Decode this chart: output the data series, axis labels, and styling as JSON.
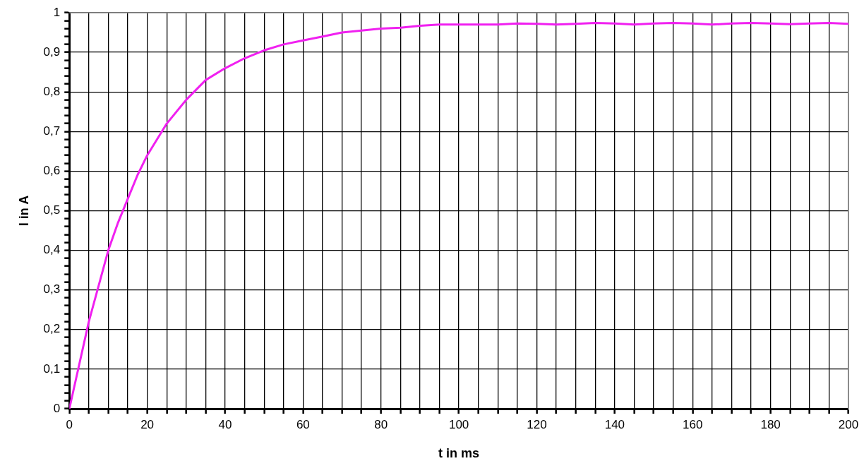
{
  "chart_data": {
    "type": "line",
    "xlabel": "t in ms",
    "ylabel": "I in A",
    "xlim": [
      0,
      200
    ],
    "xticks": [
      0,
      {
        "value": 5,
        "label": null
      },
      {
        "value": 10,
        "label": null
      },
      {
        "value": 15,
        "label": null
      },
      20,
      {
        "value": 25,
        "label": null
      },
      {
        "value": 30,
        "label": null
      },
      {
        "value": 35,
        "label": null
      },
      40,
      {
        "value": 45,
        "label": null
      },
      {
        "value": 50,
        "label": null
      },
      {
        "value": 55,
        "label": null
      },
      60,
      {
        "value": 65,
        "label": null
      },
      {
        "value": 70,
        "label": null
      },
      {
        "value": 75,
        "label": null
      },
      80,
      {
        "value": 85,
        "label": null
      },
      {
        "value": 90,
        "label": null
      },
      {
        "value": 95,
        "label": null
      },
      100,
      {
        "value": 105,
        "label": null
      },
      {
        "value": 110,
        "label": null
      },
      {
        "value": 115,
        "label": null
      },
      120,
      {
        "value": 125,
        "label": null
      },
      {
        "value": 130,
        "label": null
      },
      {
        "value": 135,
        "label": null
      },
      140,
      {
        "value": 145,
        "label": null
      },
      {
        "value": 150,
        "label": null
      },
      {
        "value": 155,
        "label": null
      },
      160,
      {
        "value": 165,
        "label": null
      },
      {
        "value": 170,
        "label": null
      },
      {
        "value": 175,
        "label": null
      },
      180,
      {
        "value": 185,
        "label": null
      },
      {
        "value": 190,
        "label": null
      },
      {
        "value": 195,
        "label": null
      },
      200
    ],
    "ylim": [
      0,
      1
    ],
    "yticks": [
      0,
      {
        "value": 0.02,
        "label": null
      },
      {
        "value": 0.04,
        "label": null
      },
      {
        "value": 0.06,
        "label": null
      },
      {
        "value": 0.08,
        "label": null
      },
      {
        "value": 0.1,
        "label": "0,1"
      },
      {
        "value": 0.12,
        "label": null
      },
      {
        "value": 0.14,
        "label": null
      },
      {
        "value": 0.16,
        "label": null
      },
      {
        "value": 0.18,
        "label": null
      },
      {
        "value": 0.2,
        "label": "0,2"
      },
      {
        "value": 0.22,
        "label": null
      },
      {
        "value": 0.24,
        "label": null
      },
      {
        "value": 0.26,
        "label": null
      },
      {
        "value": 0.28,
        "label": null
      },
      {
        "value": 0.3,
        "label": "0,3"
      },
      {
        "value": 0.32,
        "label": null
      },
      {
        "value": 0.34,
        "label": null
      },
      {
        "value": 0.36,
        "label": null
      },
      {
        "value": 0.38,
        "label": null
      },
      {
        "value": 0.4,
        "label": "0,4"
      },
      {
        "value": 0.42,
        "label": null
      },
      {
        "value": 0.44,
        "label": null
      },
      {
        "value": 0.46,
        "label": null
      },
      {
        "value": 0.48,
        "label": null
      },
      {
        "value": 0.5,
        "label": "0,5"
      },
      {
        "value": 0.52,
        "label": null
      },
      {
        "value": 0.54,
        "label": null
      },
      {
        "value": 0.56,
        "label": null
      },
      {
        "value": 0.58,
        "label": null
      },
      {
        "value": 0.6,
        "label": "0,6"
      },
      {
        "value": 0.62,
        "label": null
      },
      {
        "value": 0.64,
        "label": null
      },
      {
        "value": 0.66,
        "label": null
      },
      {
        "value": 0.68,
        "label": null
      },
      {
        "value": 0.7,
        "label": "0,7"
      },
      {
        "value": 0.72,
        "label": null
      },
      {
        "value": 0.74,
        "label": null
      },
      {
        "value": 0.76,
        "label": null
      },
      {
        "value": 0.78,
        "label": null
      },
      {
        "value": 0.8,
        "label": "0,8"
      },
      {
        "value": 0.82,
        "label": null
      },
      {
        "value": 0.84,
        "label": null
      },
      {
        "value": 0.86,
        "label": null
      },
      {
        "value": 0.88,
        "label": null
      },
      {
        "value": 0.9,
        "label": "0,9"
      },
      {
        "value": 0.92,
        "label": null
      },
      {
        "value": 0.94,
        "label": null
      },
      {
        "value": 0.96,
        "label": null
      },
      {
        "value": 0.98,
        "label": null
      },
      1
    ],
    "grid": true,
    "legend": false,
    "marker": "none",
    "line_style": "solid",
    "x": [
      0,
      2.5,
      5,
      7.5,
      10,
      12.5,
      15,
      17.5,
      20,
      25,
      30,
      35,
      40,
      45,
      50,
      55,
      60,
      65,
      70,
      75,
      80,
      85,
      90,
      95,
      100,
      105,
      110,
      115,
      120,
      125,
      130,
      135,
      140,
      145,
      150,
      155,
      160,
      165,
      170,
      175,
      180,
      185,
      190,
      195,
      200
    ],
    "series": [
      {
        "color": "#f020f0",
        "values": [
          0,
          0.11,
          0.22,
          0.31,
          0.4,
          0.47,
          0.53,
          0.59,
          0.64,
          0.72,
          0.78,
          0.83,
          0.86,
          0.885,
          0.905,
          0.92,
          0.93,
          0.94,
          0.95,
          0.955,
          0.96,
          0.962,
          0.967,
          0.97,
          0.97,
          0.97,
          0.97,
          0.973,
          0.972,
          0.97,
          0.972,
          0.974,
          0.973,
          0.97,
          0.973,
          0.974,
          0.973,
          0.97,
          0.973,
          0.974,
          0.973,
          0.971,
          0.973,
          0.974,
          0.972
        ]
      }
    ]
  }
}
